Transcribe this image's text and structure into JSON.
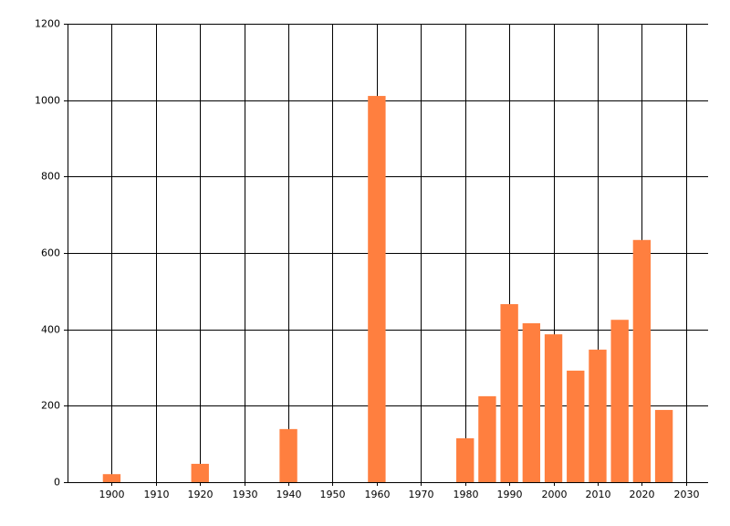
{
  "chart_data": {
    "type": "bar",
    "x": [
      1900,
      1920,
      1940,
      1960,
      1980,
      1985,
      1990,
      1995,
      2000,
      2005,
      2010,
      2015,
      2020,
      2025
    ],
    "values": [
      21,
      48,
      139,
      1011,
      115,
      225,
      466,
      416,
      387,
      292,
      347,
      425,
      634,
      189
    ],
    "color": "#ff7f3f",
    "xlim": [
      1890,
      2035
    ],
    "xticks": [
      1900,
      1910,
      1920,
      1930,
      1940,
      1950,
      1960,
      1970,
      1980,
      1990,
      2000,
      2010,
      2020,
      2030
    ],
    "ylim": [
      0,
      1200
    ],
    "yticks": [
      0,
      200,
      400,
      600,
      800,
      1000,
      1200
    ],
    "grid": true
  }
}
